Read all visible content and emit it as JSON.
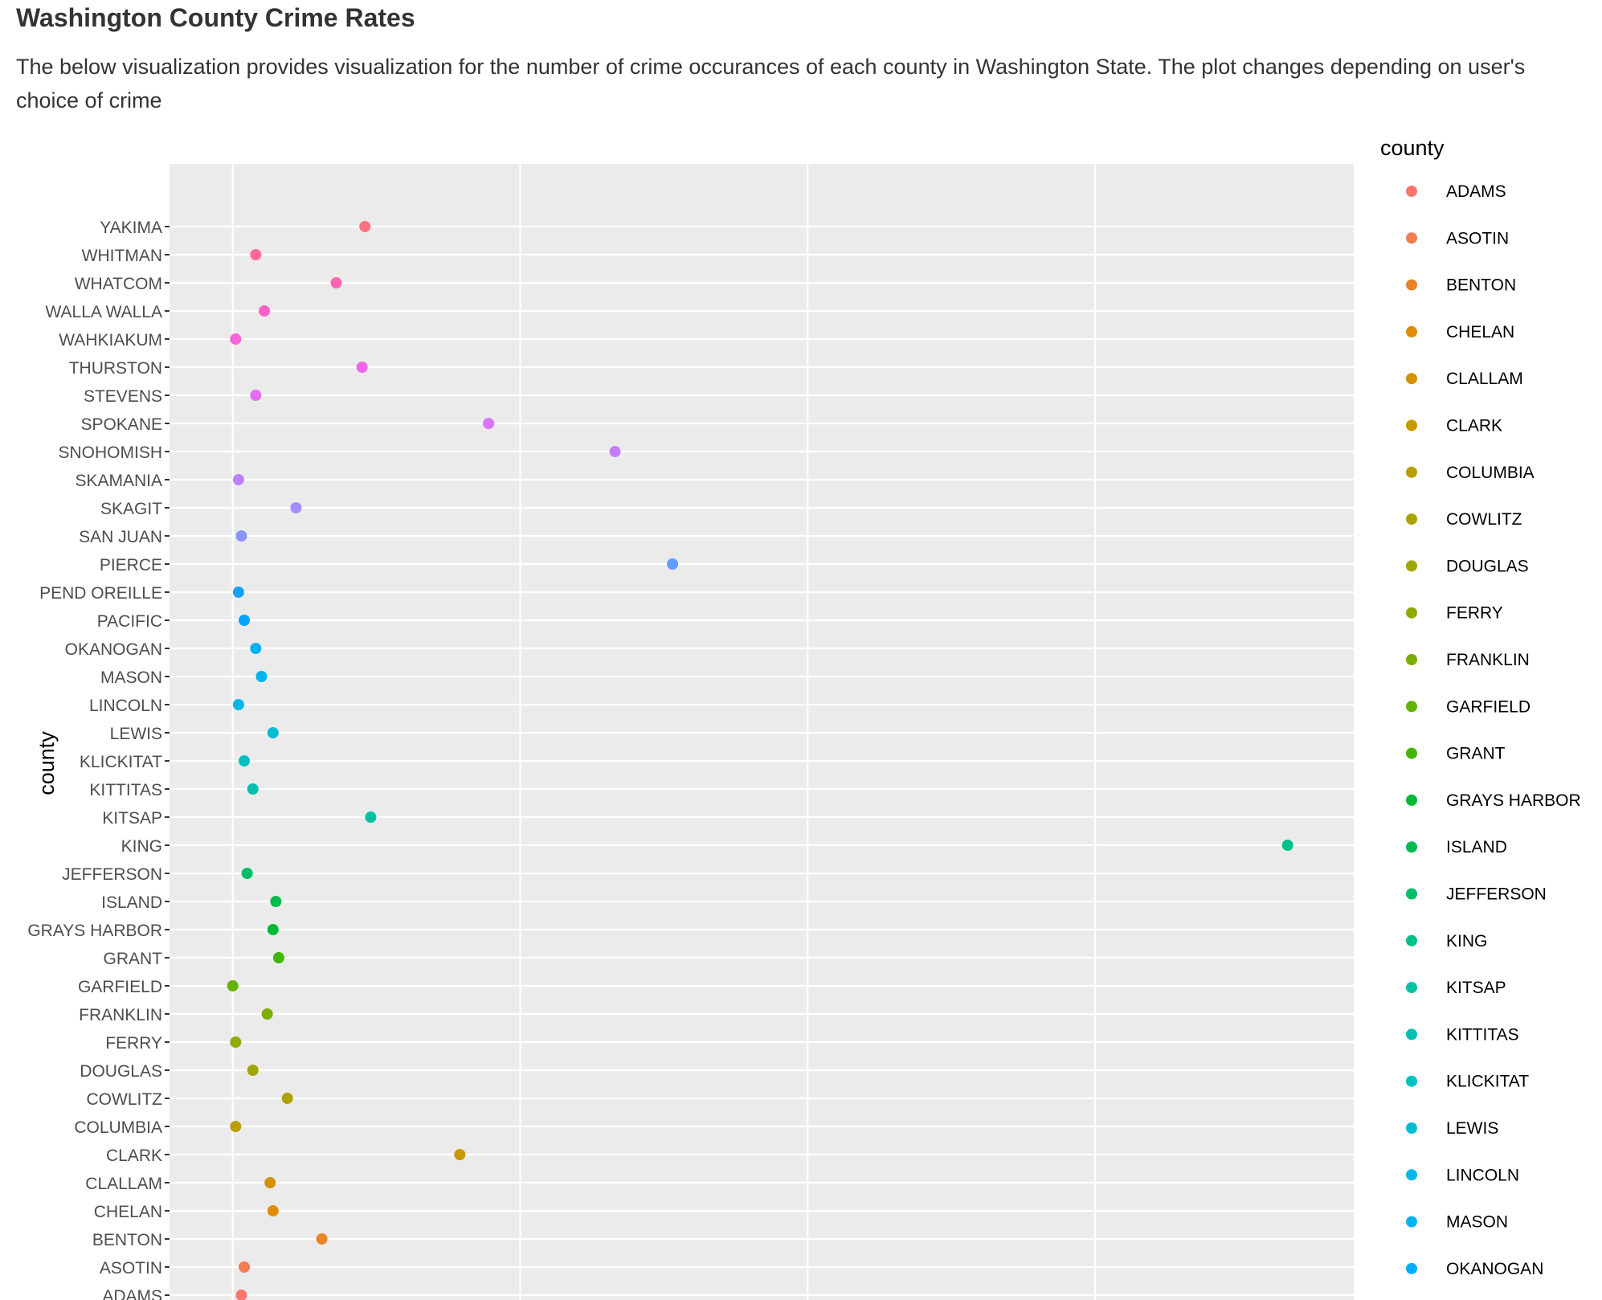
{
  "page": {
    "title": "Washington County Crime Rates",
    "description": "The below visualization provides visualization for the number of crime occurances of each county in Washington State. The plot changes depending on user's choice of crime"
  },
  "chart_data": {
    "type": "scatter",
    "title": "",
    "xlabel": "",
    "ylabel": "county",
    "legend_title": "county",
    "legend_position": "right",
    "grid": true,
    "xlim": [
      -0.22,
      3.9
    ],
    "x_gridlines": [
      0,
      1,
      2,
      3
    ],
    "categories": [
      "ADAMS",
      "ASOTIN",
      "BENTON",
      "CHELAN",
      "CLALLAM",
      "CLARK",
      "COLUMBIA",
      "COWLITZ",
      "DOUGLAS",
      "FERRY",
      "FRANKLIN",
      "GARFIELD",
      "GRANT",
      "GRAYS HARBOR",
      "ISLAND",
      "JEFFERSON",
      "KING",
      "KITSAP",
      "KITTITAS",
      "KLICKITAT",
      "LEWIS",
      "LINCOLN",
      "MASON",
      "OKANOGAN",
      "PACIFIC",
      "PEND OREILLE",
      "PIERCE",
      "SAN JUAN",
      "SKAGIT",
      "SKAMANIA",
      "SNOHOMISH",
      "SPOKANE",
      "STEVENS",
      "THURSTON",
      "WAHKIAKUM",
      "WALLA WALLA",
      "WHATCOM",
      "WHITMAN",
      "YAKIMA"
    ],
    "values": [
      0.03,
      0.04,
      0.31,
      0.14,
      0.13,
      0.79,
      0.01,
      0.19,
      0.07,
      0.01,
      0.12,
      0.0,
      0.16,
      0.14,
      0.15,
      0.05,
      3.67,
      0.48,
      0.07,
      0.04,
      0.14,
      0.02,
      0.1,
      0.08,
      0.04,
      0.02,
      1.53,
      0.03,
      0.22,
      0.02,
      1.33,
      0.89,
      0.08,
      0.45,
      0.01,
      0.11,
      0.36,
      0.08,
      0.46
    ],
    "colors": [
      "#F8766D",
      "#F27D52",
      "#E98427",
      "#DF8D00",
      "#D59100",
      "#C99700",
      "#BC9D00",
      "#AEA200",
      "#A0A600",
      "#8FAB00",
      "#7CAE00",
      "#64B200",
      "#41B603",
      "#00B935",
      "#00BB4E",
      "#00BE67",
      "#00C08B",
      "#00C1A3",
      "#00C0B1",
      "#00BFC4",
      "#00BDD0",
      "#00B8E7",
      "#00B4EF",
      "#00ADF9",
      "#00A5FF",
      "#16A0FF",
      "#619CFF",
      "#8B93FF",
      "#A58AFF",
      "#BB81FF",
      "#C77CFF",
      "#D973FC",
      "#E76BF3",
      "#F166E8",
      "#FA62DB",
      "#FF61C9",
      "#FF65AE",
      "#FF6A98",
      "#FC717F"
    ],
    "legend_visible_count": 24
  }
}
